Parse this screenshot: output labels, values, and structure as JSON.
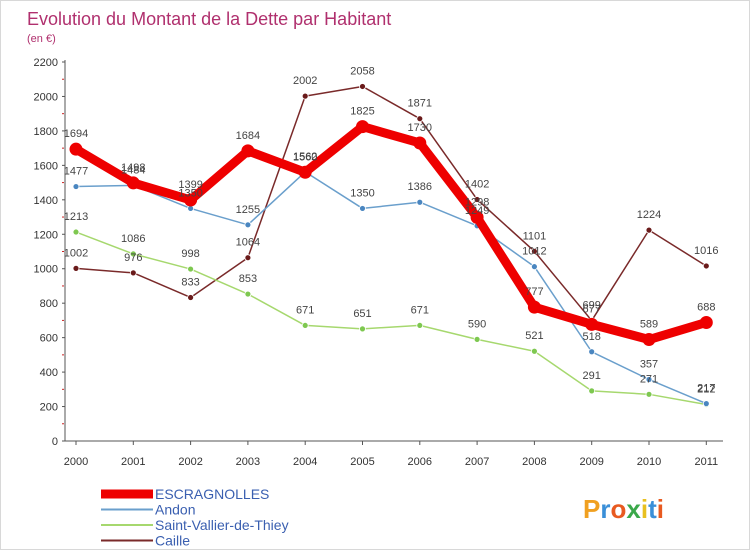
{
  "chart_data": {
    "type": "line",
    "title": "Evolution du Montant de la Dette par Habitant",
    "subtitle": "(en €)",
    "xlabel": "",
    "ylabel": "",
    "categories": [
      "2000",
      "2001",
      "2002",
      "2003",
      "2004",
      "2005",
      "2006",
      "2007",
      "2008",
      "2009",
      "2010",
      "2011"
    ],
    "ylim": [
      0,
      2200
    ],
    "yticks": [
      0,
      200,
      400,
      600,
      800,
      1000,
      1200,
      1400,
      1600,
      1800,
      2000,
      2200
    ],
    "grid": false,
    "legend_position": "bottom-left",
    "series": [
      {
        "name": "Caille",
        "color": "#7a2a2a",
        "marker_color": "#6a1a1a",
        "values": [
          1002,
          976,
          833,
          1064,
          2002,
          2058,
          1871,
          1402,
          1101,
          699,
          1224,
          1016
        ]
      },
      {
        "name": "Saint-Vallier-de-Thiey",
        "color": "#a6d86e",
        "marker_color": "#7ec850",
        "values": [
          1213,
          1086,
          998,
          853,
          671,
          651,
          671,
          590,
          521,
          291,
          271,
          212
        ]
      },
      {
        "name": "Andon",
        "color": "#6a9fcc",
        "marker_color": "#4a86c0",
        "values": [
          1477,
          1484,
          1350,
          1255,
          1562,
          1350,
          1386,
          1249,
          1012,
          518,
          357,
          217
        ]
      },
      {
        "name": "ESCRAGNOLLES",
        "color": "#ee0000",
        "marker_color": "#ee0000",
        "values": [
          1694,
          1498,
          1399,
          1684,
          1560,
          1825,
          1730,
          1298,
          777,
          677,
          589,
          688
        ]
      }
    ]
  },
  "legend": {
    "items": [
      "ESCRAGNOLLES",
      "Andon",
      "Saint-Vallier-de-Thiey",
      "Caille"
    ]
  },
  "brand": {
    "text": "Proxiti",
    "letters": [
      "P",
      "r",
      "o",
      "x",
      "i",
      "t",
      "i"
    ],
    "colors": [
      "#f0a020",
      "#3a8fd8",
      "#e85a20",
      "#3aa84a",
      "#e8c020",
      "#3a8fd8",
      "#e85a20"
    ]
  }
}
